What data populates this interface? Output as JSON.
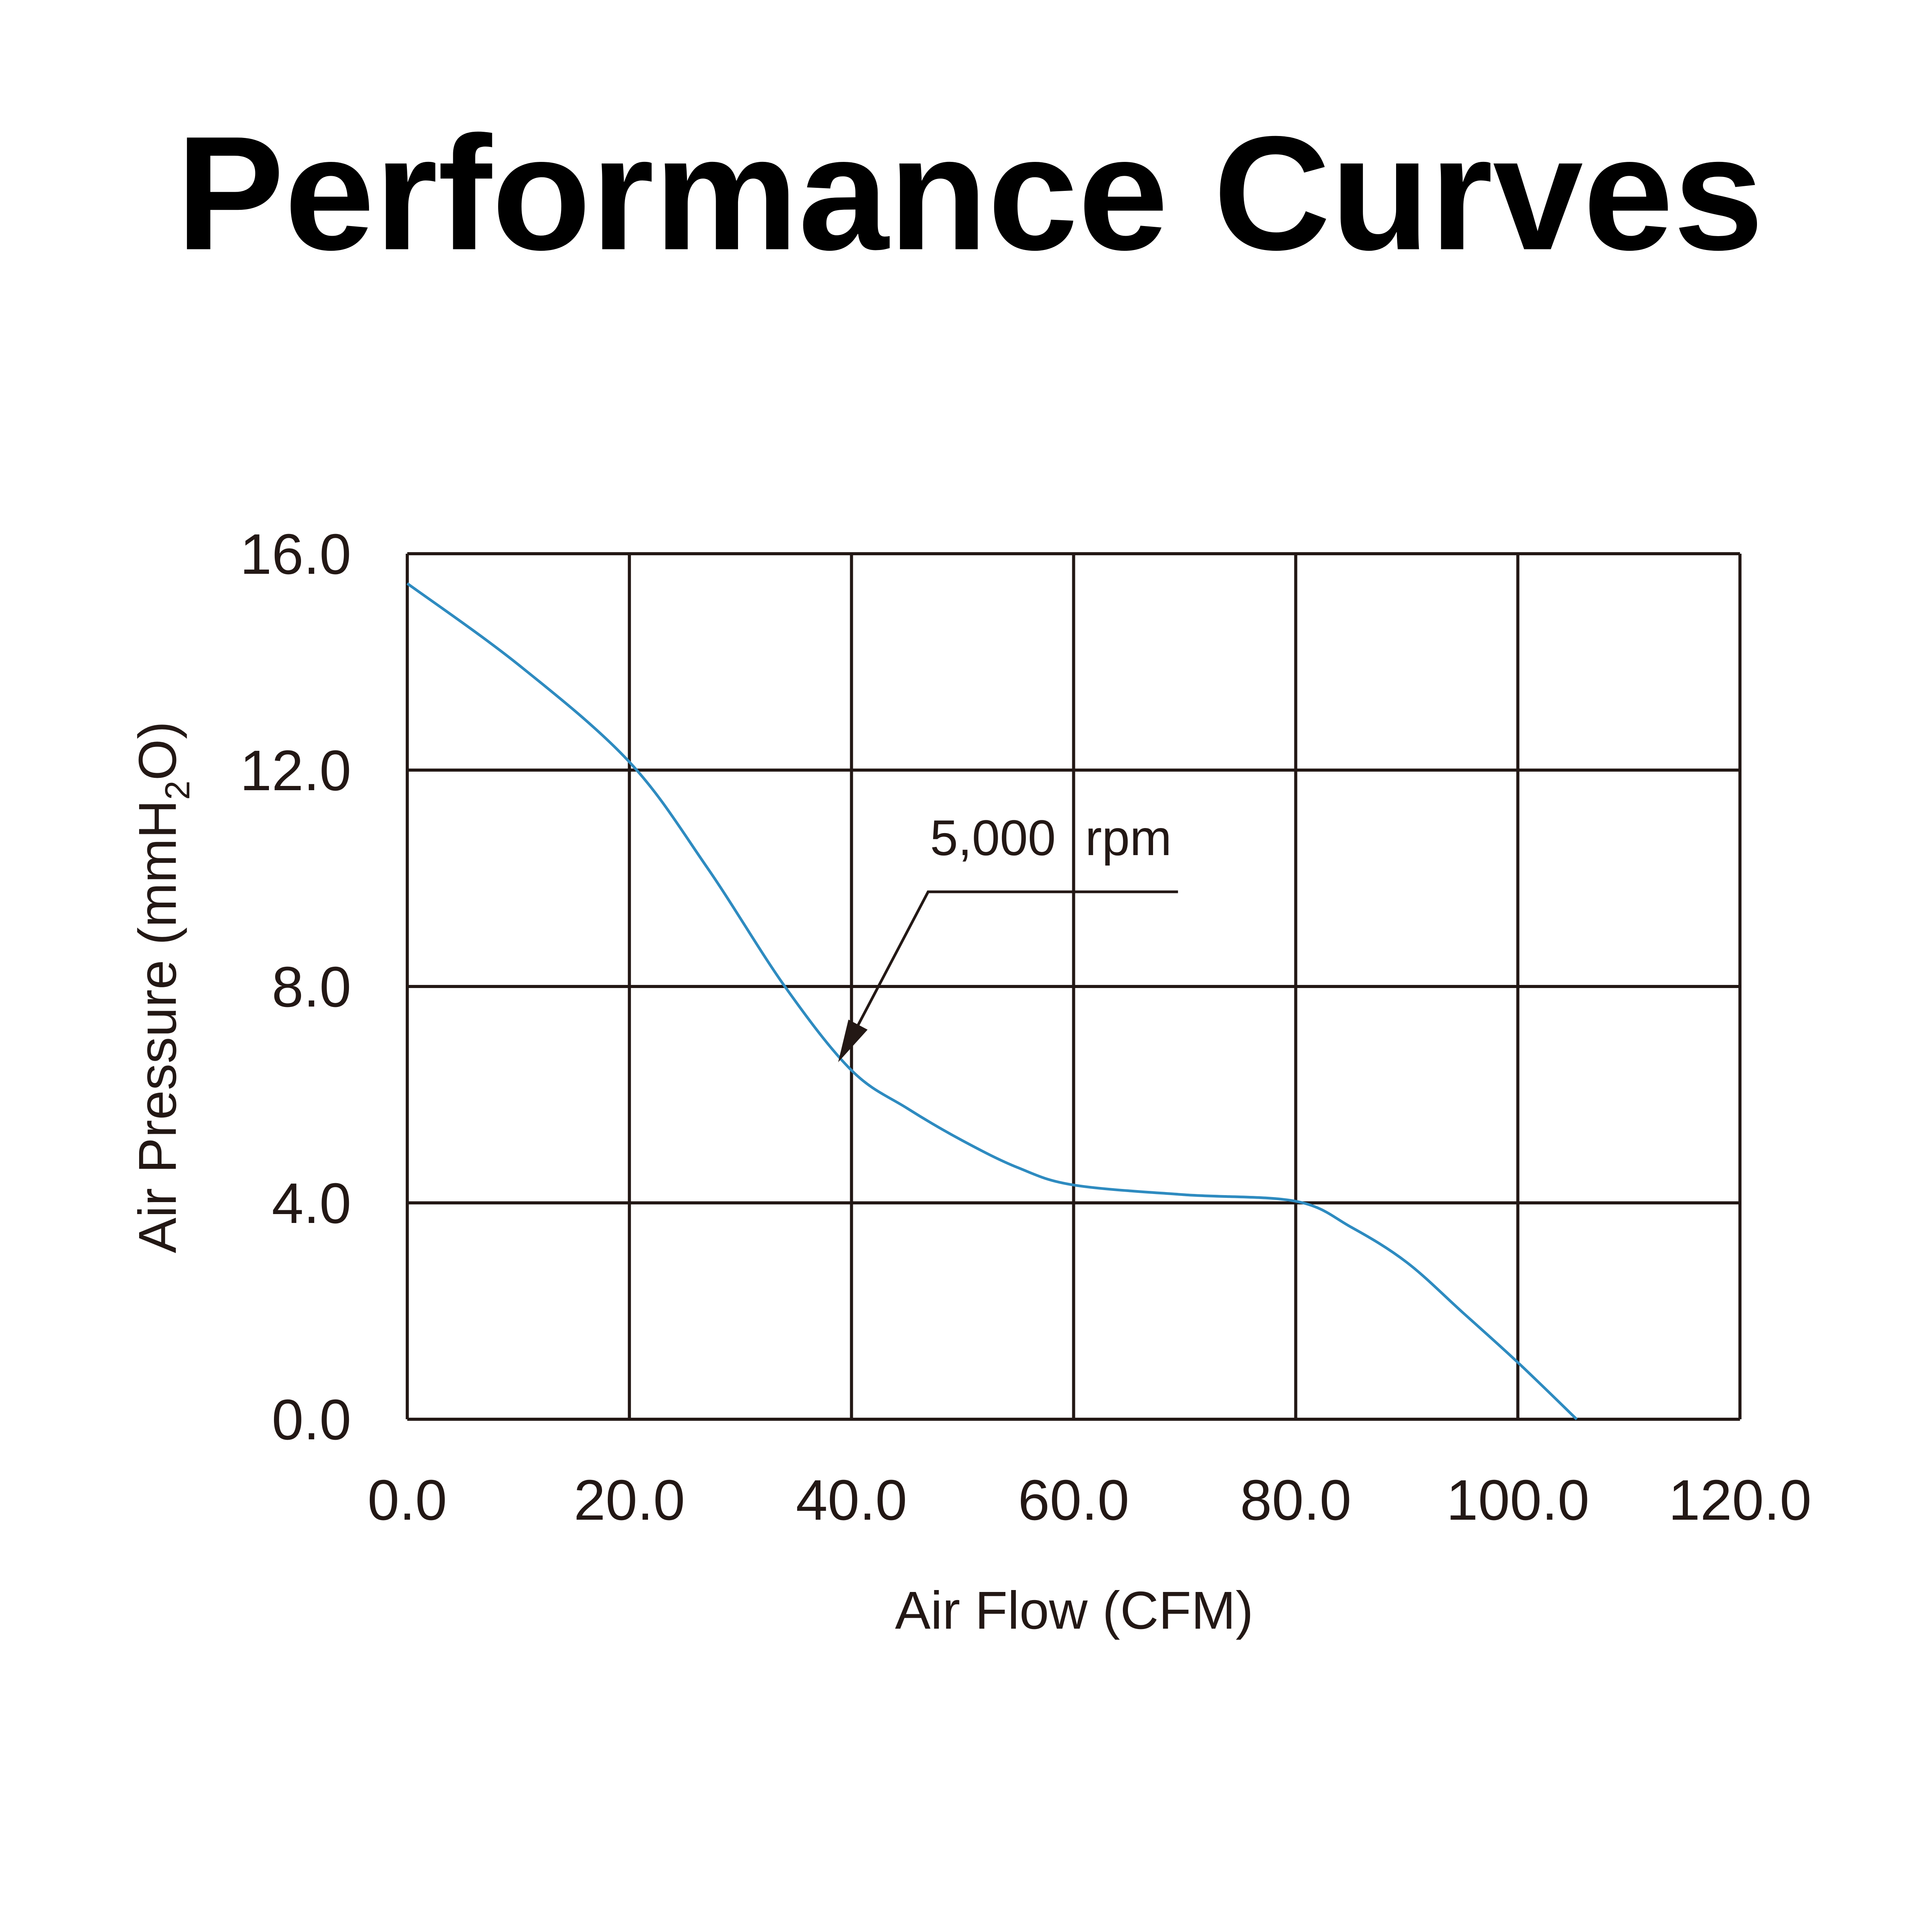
{
  "chart_data": {
    "type": "line",
    "title": "Performance Curves",
    "xlabel": "Air Flow (CFM)",
    "ylabel": "Air Pressure (mmH2O)",
    "ylabel_parts": {
      "main": "Air Pressure (mmH",
      "sub": "2",
      "end": "O)"
    },
    "xlim": [
      0,
      120
    ],
    "ylim": [
      0,
      16
    ],
    "grid": true,
    "xticks": [
      0,
      20,
      40,
      60,
      80,
      100,
      120
    ],
    "xtick_labels": [
      "0.0",
      "20.0",
      "40.0",
      "60.0",
      "80.0",
      "100.0",
      "120.0"
    ],
    "yticks": [
      0,
      4,
      8,
      12,
      16
    ],
    "ytick_labels": [
      "0.0",
      "4.0",
      "8.0",
      "12.0",
      "16.0"
    ],
    "series": [
      {
        "name": "5,000 rpm",
        "color": "#2e8bc0",
        "x": [
          0,
          10,
          20,
          27,
          34,
          40,
          45,
          50,
          55,
          60,
          70,
          80,
          85,
          90,
          95,
          100,
          105.3
        ],
        "y": [
          15.45,
          13.95,
          12.15,
          10.2,
          8.0,
          6.45,
          5.75,
          5.15,
          4.65,
          4.33,
          4.15,
          4.03,
          3.55,
          2.9,
          1.98,
          1.05,
          0
        ]
      }
    ],
    "annotations": [
      {
        "text": "5,000 rpm",
        "arrow_tip": [
          38.8,
          6.6
        ],
        "elbow": [
          46.9,
          9.75
        ],
        "line_end": [
          69.4,
          9.75
        ]
      }
    ]
  }
}
